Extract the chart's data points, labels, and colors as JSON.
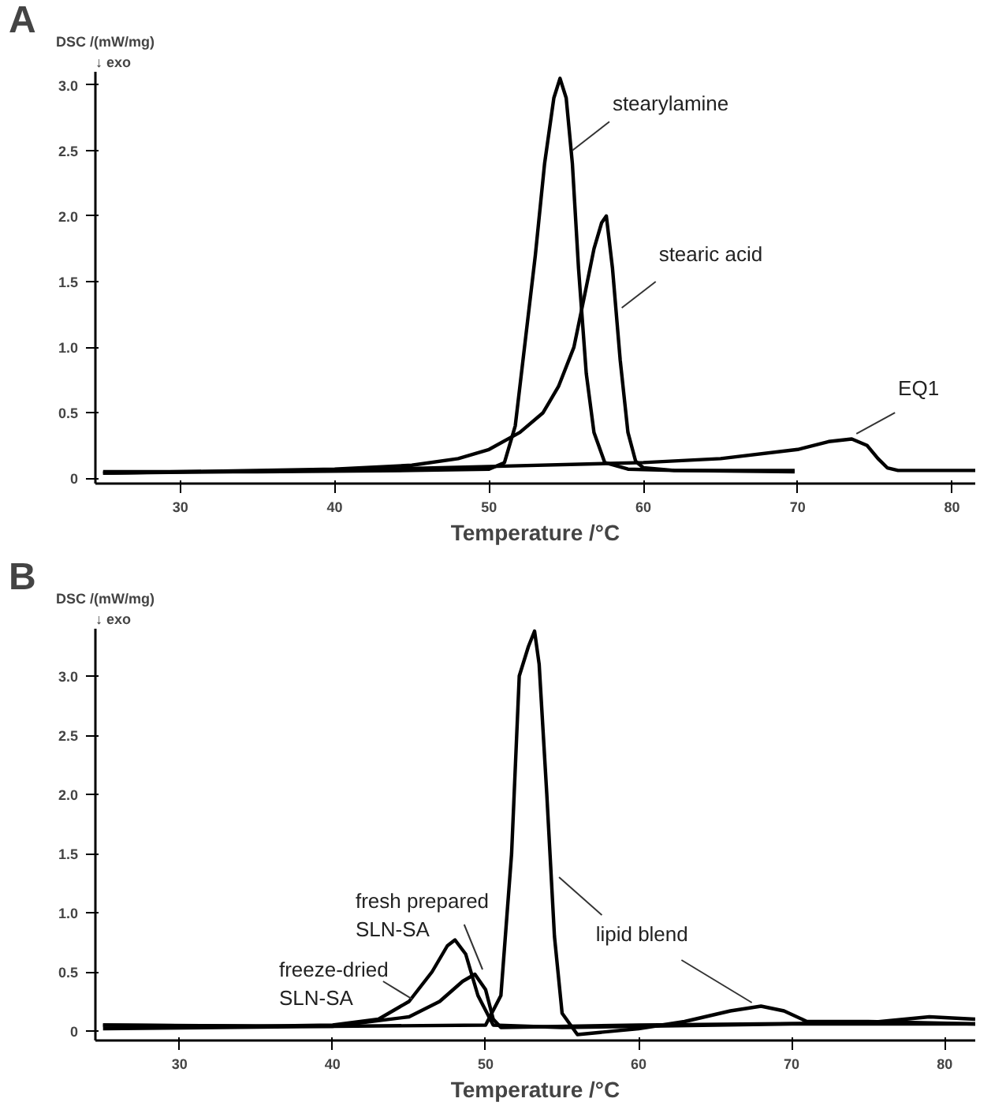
{
  "chart_data": [
    {
      "type": "line",
      "title": "A",
      "ylabel": "DSC /(mW/mg)",
      "annotations": [
        "↓ exo"
      ],
      "xlabel": "Temperature /°C",
      "xlim": [
        24.5,
        81.5
      ],
      "xticks": [
        30,
        40,
        50,
        60,
        70,
        80
      ],
      "ylim": [
        -0.04,
        3.1
      ],
      "yticks": [
        0,
        0.5,
        {
          "value": 1,
          "label": "1.0"
        },
        1.5,
        {
          "value": 2,
          "label": "2.0"
        },
        2.5,
        {
          "value": 3,
          "label": "3.0"
        }
      ],
      "grid": false,
      "legend": false,
      "marker": "none",
      "line_style": "solid",
      "series": [
        {
          "name": "stearylamine",
          "color": "#000000",
          "x": [
            25,
            35,
            45,
            50,
            51,
            51.7,
            52.3,
            53,
            53.6,
            54.2,
            54.6,
            55,
            55.4,
            55.8,
            56.3,
            56.8,
            57.5,
            59,
            62,
            69.8
          ],
          "values": [
            0.05,
            0.05,
            0.06,
            0.07,
            0.12,
            0.4,
            1.0,
            1.7,
            2.4,
            2.9,
            3.05,
            2.9,
            2.4,
            1.6,
            0.8,
            0.35,
            0.12,
            0.07,
            0.06,
            0.06
          ]
        },
        {
          "name": "stearic acid",
          "color": "#000000",
          "x": [
            25,
            40,
            45,
            48,
            50,
            52,
            53.5,
            54.5,
            55.5,
            56.2,
            56.8,
            57.3,
            57.6,
            58,
            58.5,
            59,
            59.5,
            60,
            62,
            69.8
          ],
          "values": [
            0.04,
            0.07,
            0.1,
            0.15,
            0.22,
            0.35,
            0.5,
            0.7,
            1.0,
            1.4,
            1.75,
            1.95,
            2.0,
            1.6,
            0.9,
            0.35,
            0.13,
            0.08,
            0.06,
            0.05
          ]
        },
        {
          "name": "EQ1",
          "color": "#000000",
          "x": [
            25,
            40,
            50,
            60,
            65,
            70,
            72,
            73.5,
            74.5,
            75.2,
            75.8,
            76.5,
            81.5
          ],
          "values": [
            0.04,
            0.06,
            0.09,
            0.12,
            0.15,
            0.22,
            0.28,
            0.3,
            0.25,
            0.15,
            0.08,
            0.06,
            0.06
          ]
        }
      ]
    },
    {
      "type": "line",
      "title": "B",
      "ylabel": "DSC /(mW/mg)",
      "annotations": [
        "↓ exo"
      ],
      "xlabel": "Temperature /°C",
      "xlim": [
        24.5,
        82
      ],
      "xticks": [
        30,
        40,
        50,
        60,
        70,
        80
      ],
      "ylim": [
        -0.08,
        3.4
      ],
      "yticks": [
        0,
        0.5,
        {
          "value": 1,
          "label": "1.0"
        },
        1.5,
        {
          "value": 2,
          "label": "2.0"
        },
        2.5,
        {
          "value": 3,
          "label": "3.0"
        }
      ],
      "grid": false,
      "legend": false,
      "marker": "none",
      "line_style": "solid",
      "series": [
        {
          "name": "freeze-dried\nSLN-SA",
          "color": "#000000",
          "x": [
            25,
            35,
            40,
            43,
            45,
            46.5,
            47.5,
            48,
            48.7,
            49.5,
            50.5,
            55,
            70,
            82
          ],
          "values": [
            0.05,
            0.04,
            0.05,
            0.1,
            0.25,
            0.5,
            0.72,
            0.77,
            0.65,
            0.3,
            0.05,
            0.03,
            0.06,
            0.06
          ]
        },
        {
          "name": "fresh prepared\nSLN-SA",
          "color": "#000000",
          "x": [
            25,
            40,
            45,
            47,
            48.5,
            49.3,
            50,
            50.5,
            51,
            60,
            75,
            79,
            82
          ],
          "values": [
            0.02,
            0.04,
            0.12,
            0.25,
            0.42,
            0.48,
            0.35,
            0.1,
            0.03,
            0.05,
            0.07,
            0.12,
            0.1
          ]
        },
        {
          "name": "lipid blend",
          "color": "#000000",
          "x": [
            25,
            40,
            50,
            51,
            51.7,
            52.2,
            52.8,
            53.2,
            53.5,
            54,
            54.5,
            55,
            56,
            60,
            63,
            66,
            68,
            69.5,
            71,
            75,
            82
          ],
          "values": [
            0.05,
            0.04,
            0.05,
            0.3,
            1.5,
            3.0,
            3.25,
            3.38,
            3.1,
            2.0,
            0.8,
            0.15,
            -0.03,
            0.02,
            0.08,
            0.17,
            0.21,
            0.17,
            0.08,
            0.08,
            0.06
          ]
        }
      ]
    }
  ]
}
